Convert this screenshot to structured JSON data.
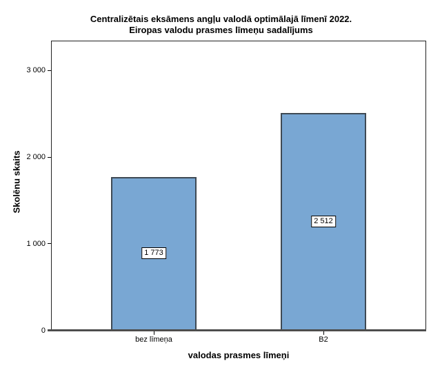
{
  "title": {
    "line1": "Centralizētais eksāmens angļu valodā optimālajā līmenī 2022.",
    "line2": "Eiropas valodu prasmes līmeņu sadalījums"
  },
  "chart_data": {
    "type": "bar",
    "title": "Centralizētais eksāmens angļu valodā optimālajā līmenī 2022. Eiropas valodu prasmes līmeņu sadalījums",
    "categories": [
      "bez līmeņa",
      "B2"
    ],
    "values": [
      1773,
      2512
    ],
    "value_labels": [
      "1 773",
      "2 512"
    ],
    "xlabel": "valodas prasmes līmeņi",
    "ylabel": "Skolēnu skaits",
    "ylim": [
      0,
      3350
    ],
    "yticks": [
      0,
      1000,
      2000,
      3000
    ],
    "ytick_labels": [
      "0",
      "1 000",
      "2 000",
      "3 000"
    ],
    "grid": "off",
    "legend": "none",
    "bar_color": "#79a7d3",
    "bar_border_color": "#3e4953",
    "axis_color": "#4d4d4d",
    "frame_color": "#1f1f1f",
    "label_box_bg": "#ffffff",
    "label_box_border": "#000000"
  }
}
